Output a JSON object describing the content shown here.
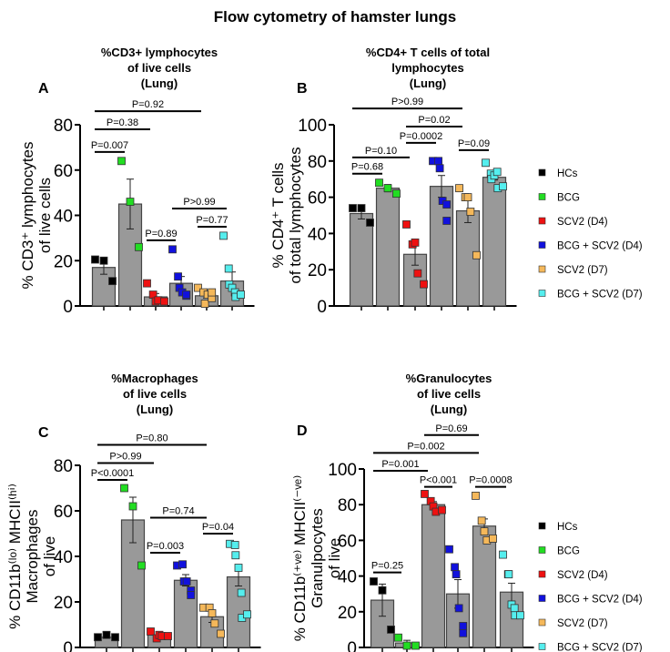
{
  "title": "Flow cytometry of hamster lungs",
  "legend": [
    {
      "label": "HCs",
      "color": "#000000"
    },
    {
      "label": "BCG",
      "color": "#22dd22"
    },
    {
      "label": "SCV2 (D4)",
      "color": "#ee1111"
    },
    {
      "label": "BCG + SCV2 (D4)",
      "color": "#1111dd"
    },
    {
      "label": "SCV2 (D7)",
      "color": "#f5b85a"
    },
    {
      "label": "BCG + SCV2 (D7)",
      "color": "#55eeee"
    }
  ],
  "chart_data": [
    {
      "type": "bar",
      "panel": "A",
      "title": [
        "%CD3+ lymphocytes",
        "of live cells",
        "(Lung)"
      ],
      "ylabel": [
        "% CD3⁺ lymphocytes",
        "of live cells"
      ],
      "ylim": [
        0,
        80
      ],
      "yticks": [
        0,
        20,
        40,
        60,
        80
      ],
      "groups": [
        {
          "mean": 17,
          "sem": 3,
          "points": [
            20.5,
            20,
            11
          ]
        },
        {
          "mean": 45,
          "sem": 11,
          "points": [
            64,
            46,
            26
          ]
        },
        {
          "mean": 4,
          "sem": 1.5,
          "points": [
            10,
            5,
            2,
            2.5,
            2
          ]
        },
        {
          "mean": 10,
          "sem": 3,
          "points": [
            25,
            13,
            8,
            6,
            4.5,
            5
          ]
        },
        {
          "mean": 4.5,
          "sem": 1,
          "points": [
            8,
            6,
            1,
            5,
            3.5,
            6
          ]
        },
        {
          "mean": 11,
          "sem": 4,
          "points": [
            31,
            16.5,
            9.5,
            8,
            6,
            4,
            5
          ]
        }
      ],
      "comparisons": [
        {
          "from": 0,
          "to": 1,
          "level": 68,
          "label": "P=0.007"
        },
        {
          "from": 0,
          "to": 2,
          "level": 78,
          "label": "P=0.38"
        },
        {
          "from": 0,
          "to": 4,
          "level": 86,
          "label": "P=0.92"
        },
        {
          "from": 2,
          "to": 3,
          "level": 29,
          "label": "P=0.89"
        },
        {
          "from": 3,
          "to": 5,
          "level": 43,
          "label": "P>0.99"
        },
        {
          "from": 4,
          "to": 5,
          "level": 35,
          "label": "P=0.77"
        }
      ]
    },
    {
      "type": "bar",
      "panel": "B",
      "title": [
        "%CD4+ T cells of total",
        "lymphocytes",
        "(Lung)"
      ],
      "ylabel": [
        "% CD4⁺ T cells",
        "of total lymphocytes"
      ],
      "ylim": [
        0,
        100
      ],
      "yticks": [
        0,
        20,
        40,
        60,
        80,
        100
      ],
      "groups": [
        {
          "mean": 51,
          "sem": 3,
          "points": [
            54,
            54,
            46
          ]
        },
        {
          "mean": 65,
          "sem": 2,
          "points": [
            68,
            65,
            62
          ]
        },
        {
          "mean": 28.5,
          "sem": 6,
          "points": [
            45,
            34,
            35,
            18,
            12
          ]
        },
        {
          "mean": 66,
          "sem": 6,
          "points": [
            80,
            80,
            76,
            58,
            56,
            47
          ]
        },
        {
          "mean": 52.5,
          "sem": 6.5,
          "points": [
            65,
            60,
            60,
            52,
            28
          ]
        },
        {
          "mean": 71,
          "sem": 1.5,
          "points": [
            79,
            73,
            70,
            72,
            74,
            65,
            66
          ]
        }
      ],
      "comparisons": [
        {
          "from": 0,
          "to": 1,
          "level": 73,
          "label": "P=0.68"
        },
        {
          "from": 0,
          "to": 2,
          "level": 82,
          "label": "P=0.10"
        },
        {
          "from": 2,
          "to": 3,
          "level": 90,
          "label": "P=0.0002"
        },
        {
          "from": 2,
          "to": 4,
          "level": 99,
          "label": "P=0.02"
        },
        {
          "from": 0,
          "to": 4,
          "level": 109,
          "label": "P>0.99"
        },
        {
          "from": 4,
          "to": 5,
          "level": 86,
          "label": "P=0.09"
        }
      ]
    },
    {
      "type": "bar",
      "panel": "C",
      "title": [
        "%Macrophages",
        "of live cells",
        "(Lung)"
      ],
      "ylabel": [
        "% CD11b⁽ˡᵒ⁾ MHCII⁽ʰⁱ⁾",
        "Macrophages",
        "of live"
      ],
      "ylim": [
        0,
        80
      ],
      "yticks": [
        0,
        20,
        40,
        60,
        80
      ],
      "groups": [
        {
          "mean": 4.5,
          "sem": 0.5,
          "points": [
            4.5,
            5.5,
            4.5
          ]
        },
        {
          "mean": 56,
          "sem": 10,
          "points": [
            70,
            62,
            36
          ]
        },
        {
          "mean": 5.5,
          "sem": 0.6,
          "points": [
            7,
            4,
            5.5,
            5,
            5
          ]
        },
        {
          "mean": 29.5,
          "sem": 2.5,
          "points": [
            36,
            36.5,
            29,
            29,
            25,
            23
          ]
        },
        {
          "mean": 13.5,
          "sem": 2.5,
          "points": [
            17.5,
            17.5,
            15,
            10.5,
            6
          ]
        },
        {
          "mean": 31,
          "sem": 4,
          "points": [
            45.5,
            45,
            40.5,
            35,
            24,
            13,
            14.5
          ]
        }
      ],
      "comparisons": [
        {
          "from": 0,
          "to": 1,
          "level": 73.6,
          "label": "P<0.0001"
        },
        {
          "from": 0,
          "to": 2,
          "level": 81,
          "label": "P>0.99"
        },
        {
          "from": 0,
          "to": 4,
          "level": 89,
          "label": "P=0.80"
        },
        {
          "from": 2,
          "to": 3,
          "level": 41.6,
          "label": "P=0.003"
        },
        {
          "from": 2,
          "to": 4,
          "level": 57,
          "label": "P=0.74"
        },
        {
          "from": 4,
          "to": 5,
          "level": 50,
          "label": "P=0.04"
        }
      ]
    },
    {
      "type": "bar",
      "panel": "D",
      "title": [
        "%Granulocytes",
        "of live cells",
        "(Lung)"
      ],
      "ylabel": [
        "% CD11b⁽⁺ᵛᵉ⁾ MHCII⁽⁻ᵛᵉ⁾",
        "Granulpocytes",
        "of live"
      ],
      "ylim": [
        0,
        100
      ],
      "yticks": [
        0,
        20,
        40,
        60,
        80,
        100
      ],
      "groups": [
        {
          "mean": 26.5,
          "sem": 9,
          "points": [
            37,
            32,
            10
          ]
        },
        {
          "mean": 2.5,
          "sem": 1.5,
          "points": [
            5.5,
            1,
            1
          ]
        },
        {
          "mean": 80,
          "sem": 1.7,
          "points": [
            86,
            82,
            79,
            76,
            77
          ]
        },
        {
          "mean": 30,
          "sem": 8,
          "points": [
            55,
            45,
            41,
            22,
            12,
            8
          ]
        },
        {
          "mean": 68,
          "sem": 4,
          "points": [
            85,
            71,
            65,
            60,
            61
          ]
        },
        {
          "mean": 31,
          "sem": 5,
          "points": [
            52,
            41,
            41,
            24,
            22,
            18,
            18
          ]
        }
      ],
      "comparisons": [
        {
          "from": 0,
          "to": 1,
          "level": 42,
          "label": "P=0.25"
        },
        {
          "from": 0,
          "to": 2,
          "level": 99,
          "label": "P=0.001"
        },
        {
          "from": 0,
          "to": 4,
          "level": 109,
          "label": "P=0.002"
        },
        {
          "from": 2,
          "to": 4,
          "level": 119,
          "label": "P=0.69"
        },
        {
          "from": 2,
          "to": 3,
          "level": 90,
          "label": "P<0.001"
        },
        {
          "from": 4,
          "to": 5,
          "level": 90,
          "label": "P=0.0008"
        }
      ]
    }
  ]
}
